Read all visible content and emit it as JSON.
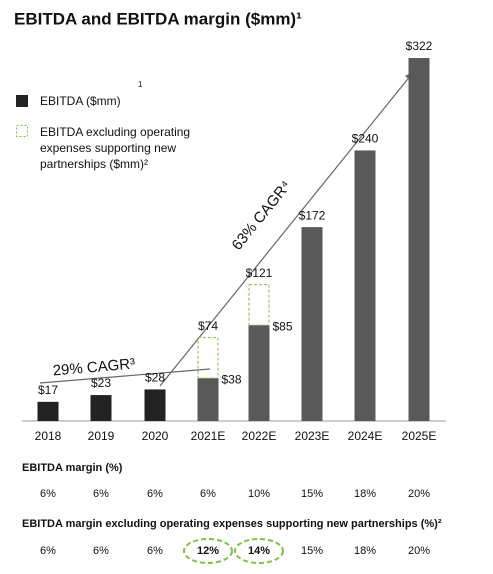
{
  "chart_data": {
    "type": "bar",
    "title": "EBITDA and EBITDA margin ($mm)¹",
    "categories": [
      "2018",
      "2019",
      "2020",
      "2021E",
      "2022E",
      "2023E",
      "2024E",
      "2025E"
    ],
    "series": [
      {
        "name": "EBITDA ($mm)",
        "color": "#222222",
        "projected_color": "#595959",
        "values": [
          17,
          23,
          28,
          38,
          85,
          172,
          240,
          322
        ],
        "value_labels": [
          "$17",
          "$23",
          "$28",
          "$38",
          "$85",
          "$172",
          "$240",
          "$322"
        ]
      },
      {
        "name": "EBITDA excluding operating expenses supporting new partnerships ($mm)²",
        "color": "#7dc242",
        "values": [
          null,
          null,
          null,
          74,
          121,
          null,
          null,
          null
        ],
        "value_labels": [
          null,
          null,
          null,
          "$74",
          "$121",
          null,
          null,
          null
        ]
      }
    ],
    "legend_note": "1",
    "ylim": [
      0,
      330
    ],
    "annotations": [
      "29% CAGR³",
      "63% CAGR⁴"
    ],
    "annotation_color": "#29a3e0",
    "margin_rows": [
      {
        "title": "EBITDA margin (%)",
        "values": [
          "6%",
          "6%",
          "6%",
          "6%",
          "10%",
          "15%",
          "18%",
          "20%"
        ]
      },
      {
        "title": "EBITDA margin excluding operating expenses supporting new partnerships (%)²",
        "values": [
          "6%",
          "6%",
          "6%",
          "12%",
          "14%",
          "15%",
          "18%",
          "20%"
        ],
        "highlighted": [
          3,
          4
        ]
      }
    ]
  }
}
